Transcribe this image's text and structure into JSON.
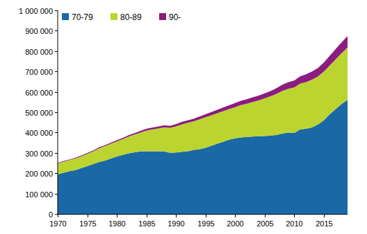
{
  "chart_data": {
    "type": "area",
    "stacked": true,
    "grid": false,
    "legend": "top-left",
    "x": [
      1970,
      1971,
      1972,
      1973,
      1974,
      1975,
      1976,
      1977,
      1978,
      1979,
      1980,
      1981,
      1982,
      1983,
      1984,
      1985,
      1986,
      1987,
      1988,
      1989,
      1990,
      1991,
      1992,
      1993,
      1994,
      1995,
      1996,
      1997,
      1998,
      1999,
      2000,
      2001,
      2002,
      2003,
      2004,
      2005,
      2006,
      2007,
      2008,
      2009,
      2010,
      2011,
      2012,
      2013,
      2014,
      2015,
      2016,
      2017,
      2018,
      2019
    ],
    "xlim": [
      1970,
      2019
    ],
    "xticks": [
      1970,
      1975,
      1980,
      1985,
      1990,
      1995,
      2000,
      2005,
      2010,
      2015
    ],
    "ylim": [
      0,
      1000000
    ],
    "yticks": [
      0,
      {
        "value": 100000,
        "label": "100 000"
      },
      {
        "value": 200000,
        "label": "200 000"
      },
      {
        "value": 300000,
        "label": "300 000"
      },
      {
        "value": 400000,
        "label": "400 000"
      },
      {
        "value": 500000,
        "label": "500 000"
      },
      {
        "value": 600000,
        "label": "600 000"
      },
      {
        "value": 700000,
        "label": "700 000"
      },
      {
        "value": 800000,
        "label": "800 000"
      },
      {
        "value": 900000,
        "label": "900 000"
      },
      {
        "value": 1000000,
        "label": "1 000 000"
      }
    ],
    "series": [
      {
        "name": "70-79",
        "color": "#1a69a6",
        "values": [
          195000,
          202000,
          210000,
          215000,
          225000,
          235000,
          245000,
          255000,
          262000,
          272000,
          282000,
          290000,
          298000,
          303000,
          307000,
          308000,
          308000,
          308000,
          307000,
          300000,
          302000,
          305000,
          308000,
          315000,
          318000,
          325000,
          335000,
          345000,
          355000,
          365000,
          372000,
          376000,
          378000,
          380000,
          382000,
          383000,
          385000,
          388000,
          395000,
          400000,
          398000,
          415000,
          418000,
          425000,
          440000,
          460000,
          490000,
          515000,
          540000,
          560000
        ]
      },
      {
        "name": "80-89",
        "color": "#bcd430",
        "values": [
          53000,
          55000,
          55000,
          58000,
          58000,
          60000,
          63000,
          67000,
          71000,
          73000,
          74000,
          77000,
          82000,
          87000,
          93000,
          102000,
          107000,
          112000,
          118000,
          123000,
          128000,
          135000,
          140000,
          140000,
          147000,
          150000,
          150000,
          150000,
          150000,
          150000,
          153000,
          159000,
          164000,
          170000,
          176000,
          185000,
          193000,
          202000,
          210000,
          215000,
          224000,
          225000,
          230000,
          235000,
          235000,
          240000,
          240000,
          245000,
          250000,
          258000
        ]
      },
      {
        "name": "90-",
        "color": "#8c1c80",
        "values": [
          3000,
          3000,
          3000,
          3000,
          4000,
          4000,
          4000,
          5000,
          5000,
          5000,
          6000,
          6000,
          7000,
          7000,
          8000,
          8000,
          9000,
          9000,
          10000,
          10000,
          11000,
          12000,
          12000,
          13000,
          14000,
          15000,
          16000,
          17000,
          18000,
          19000,
          20000,
          21000,
          22000,
          23000,
          24000,
          25000,
          26000,
          28000,
          30000,
          32000,
          34000,
          36000,
          38000,
          40000,
          42000,
          44000,
          47000,
          50000,
          53000,
          56000
        ]
      }
    ]
  }
}
